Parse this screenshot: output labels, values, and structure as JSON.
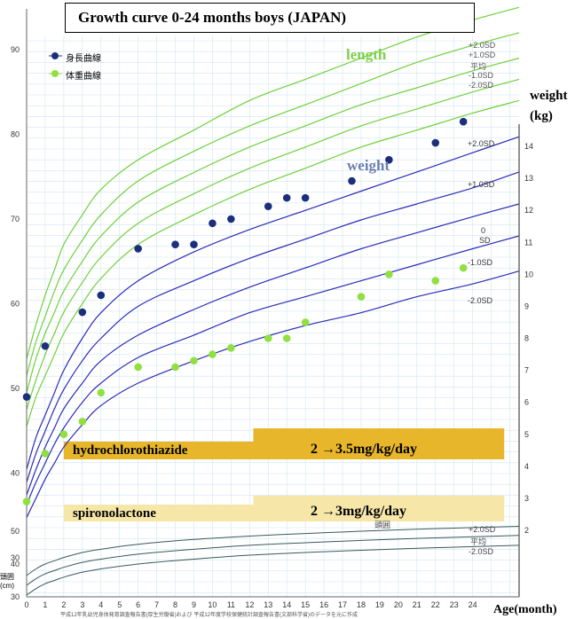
{
  "chart_data": {
    "type": "scatter",
    "title": "Growth curve  0-24 months boys  (JAPAN)",
    "xlabel": "Age(month)",
    "x_ticks": [
      0,
      1,
      2,
      3,
      4,
      5,
      6,
      7,
      8,
      9,
      10,
      11,
      12,
      13,
      14,
      15,
      16,
      17,
      18,
      19,
      20,
      21,
      22,
      23,
      24
    ],
    "xlim": [
      0,
      26.5
    ],
    "length_axis": {
      "ticks": [
        30,
        40,
        50,
        60,
        70,
        80,
        90
      ],
      "lim": [
        28,
        95
      ]
    },
    "weight_axis": {
      "label": "weight (kg)",
      "ticks": [
        2,
        3,
        4,
        5,
        6,
        7,
        8,
        9,
        10,
        11,
        12,
        13,
        14
      ],
      "lim": [
        1.95,
        14.9
      ]
    },
    "head_axis": {
      "label": "頭囲 (cm)",
      "ticks": [
        30,
        40,
        50
      ]
    },
    "legend": [
      {
        "name": "身長曲線",
        "color": "#1c2f7d"
      },
      {
        "name": "体重曲線",
        "color": "#90e040"
      }
    ],
    "curve_labels": {
      "length": "length",
      "weight": "weight",
      "head": "頭囲"
    },
    "sd_labels": {
      "length": [
        "+2.0SD",
        "+1.0SD",
        "平均",
        "-1.0SD",
        "-2.0SD"
      ],
      "weight": [
        "+2.0SD",
        "+1.0SD",
        "0",
        "SD",
        "-1.0SD",
        "-2.0SD"
      ],
      "head": [
        "+2.0SD",
        "平均",
        "-2.0SD"
      ]
    },
    "reference_curves": {
      "length": {
        "x": [
          0,
          0.5,
          1,
          1.5,
          2,
          3,
          4,
          6,
          9,
          12,
          15,
          18,
          21,
          24,
          26.5
        ],
        "series": [
          {
            "name": "+2.0SD",
            "values": [
              53.5,
              57.5,
              61,
              64,
              67,
              70.5,
              73.5,
              77,
              80.5,
              84,
              86.5,
              89,
              91.5,
              93.5,
              95
            ]
          },
          {
            "name": "+1.0SD",
            "values": [
              51.5,
              55.5,
              58.5,
              61.5,
              64,
              67.5,
              70.5,
              74.5,
              78,
              81,
              83.5,
              86,
              88.5,
              90.5,
              92
            ]
          },
          {
            "name": "平均",
            "values": [
              49.5,
              53.5,
              56.5,
              59,
              61.5,
              65,
              68,
              72,
              75.5,
              78.5,
              81,
              83.5,
              85.5,
              87.5,
              89
            ]
          },
          {
            "name": "-1.0SD",
            "values": [
              47.5,
              51,
              54,
              56.5,
              59,
              62.5,
              65.5,
              69.5,
              73,
              76,
              78.5,
              81,
              83,
              85,
              86.5
            ]
          },
          {
            "name": "-2.0SD",
            "values": [
              45.5,
              49,
              51.5,
              54,
              56.5,
              60,
              63,
              67,
              70.5,
              73.5,
              76,
              78.5,
              80.5,
              82.5,
              84
            ]
          }
        ]
      },
      "weight": {
        "x": [
          0,
          0.5,
          1,
          1.5,
          2,
          3,
          4,
          6,
          9,
          12,
          15,
          18,
          21,
          24,
          26.5
        ],
        "series": [
          {
            "name": "+2.0SD",
            "values": [
              3.9,
              4.9,
              5.6,
              6.3,
              7.0,
              8.0,
              8.8,
              9.8,
              10.7,
              11.4,
              12.0,
              12.6,
              13.2,
              13.8,
              14.3
            ]
          },
          {
            "name": "+1.0SD",
            "values": [
              3.5,
              4.4,
              5.1,
              5.8,
              6.4,
              7.3,
              8.0,
              9.0,
              9.8,
              10.5,
              11.1,
              11.7,
              12.2,
              12.7,
              13.2
            ]
          },
          {
            "name": "0SD",
            "values": [
              3.1,
              3.9,
              4.6,
              5.2,
              5.8,
              6.6,
              7.3,
              8.1,
              8.9,
              9.6,
              10.2,
              10.8,
              11.3,
              11.8,
              12.2
            ]
          },
          {
            "name": "-1.0SD",
            "values": [
              2.8,
              3.5,
              4.1,
              4.7,
              5.2,
              6.0,
              6.6,
              7.4,
              8.1,
              8.8,
              9.3,
              9.8,
              10.3,
              10.8,
              11.2
            ]
          },
          {
            "name": "-2.0SD",
            "values": [
              2.4,
              3.0,
              3.6,
              4.1,
              4.6,
              5.3,
              5.9,
              6.6,
              7.3,
              7.9,
              8.4,
              8.8,
              9.3,
              9.7,
              10.1
            ]
          }
        ]
      },
      "head": {
        "x": [
          0,
          0.5,
          1,
          1.5,
          2,
          3,
          4,
          6,
          9,
          12,
          15,
          18,
          21,
          24,
          26.5
        ],
        "series": [
          {
            "name": "+2.0SD",
            "values": [
              36.5,
              38.5,
              40,
              41,
              42,
              43.5,
              44.5,
              46,
              47.5,
              48.5,
              49.3,
              50,
              50.6,
              51.1,
              51.5
            ]
          },
          {
            "name": "平均",
            "values": [
              33.5,
              35.5,
              37,
              38,
              39,
              40.5,
              41.5,
              43,
              44.5,
              45.7,
              46.5,
              47.2,
              47.8,
              48.3,
              48.7
            ]
          },
          {
            "name": "-2.0SD",
            "values": [
              30.5,
              32.5,
              34,
              35,
              36,
              37.5,
              38.5,
              40,
              41.5,
              42.7,
              43.5,
              44.2,
              44.8,
              45.3,
              45.7
            ]
          }
        ]
      }
    },
    "measured": {
      "length": {
        "name": "身長曲線",
        "x": [
          0,
          1,
          3,
          4,
          6,
          8,
          9,
          10,
          11,
          13,
          14,
          15,
          17.5,
          19.5,
          22,
          23.5
        ],
        "values": [
          49,
          55,
          59,
          61,
          66.5,
          67,
          67,
          69.5,
          70,
          71.5,
          72.5,
          72.5,
          74.5,
          77,
          79,
          81.5
        ]
      },
      "weight": {
        "name": "体重曲線",
        "x": [
          0,
          1,
          2,
          3,
          4,
          6,
          8,
          9,
          10,
          11,
          13,
          14,
          15,
          18,
          19.5,
          22,
          23.5
        ],
        "values": [
          2.9,
          4.4,
          5.0,
          5.4,
          6.3,
          7.1,
          7.1,
          7.3,
          7.5,
          7.7,
          8.0,
          8.0,
          8.5,
          9.3,
          10.0,
          9.8,
          10.2
        ]
      }
    },
    "annotations": [
      {
        "name": "hydrochlorothiazide",
        "label": "hydrochlorothiazide",
        "dose": "2 →3.5mg/kg/day"
      },
      {
        "name": "spironolactone",
        "label": "spironolactone",
        "dose": "2 →3mg/kg/day"
      }
    ],
    "footer": "平成12年乳幼児身体発育調査報告書(厚生労働省)および 平成12年度学校保健統計調査報告書(文部科学省)のデータを元に作成",
    "colors": {
      "length_curves": "#6fd03a",
      "weight_curves": "#2a2ab8",
      "head_curves": "#3a5858",
      "length_points": "#1c2f7d",
      "weight_points": "#90e040",
      "grid": "#cfe6f2",
      "hctz_bar": "#e8b62a",
      "spiro_bar": "#f6e6a8"
    }
  }
}
